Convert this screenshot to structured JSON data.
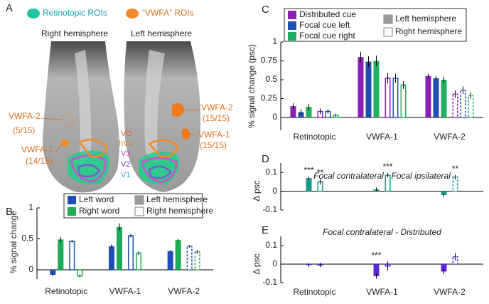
{
  "panel_a": {
    "letter": "A",
    "legend": [
      "Retinotopic ROIs",
      "“VWFA” ROIs"
    ],
    "hemispheres": [
      "Right hemisphere",
      "Left hemisphere"
    ],
    "rois_right": [
      {
        "name": "VWFA-2",
        "count": "(5/15)"
      },
      {
        "name": "VWFA-1",
        "count": "(14/15)"
      }
    ],
    "rois_left": [
      {
        "name": "VWFA-2",
        "count": "(15/15)"
      },
      {
        "name": "VWFA-1",
        "count": "(15/15)"
      }
    ],
    "areas": [
      "VO",
      "hV4",
      "V3",
      "V2",
      "V1"
    ]
  },
  "chart_data": [
    {
      "type": "bar",
      "panel": "B",
      "ylabel": "% signal change",
      "categories": [
        "Retinotopic",
        "VWFA-1",
        "VWFA-2"
      ],
      "ylim": [
        -0.15,
        1
      ],
      "yticks": [
        0,
        0.5,
        1
      ],
      "hemispheres": [
        "Left hemisphere",
        "Right hemisphere"
      ],
      "fill_styles": [
        "filled",
        "open"
      ],
      "open_dashed": [
        false,
        false,
        true
      ],
      "series": [
        {
          "name": "Left word",
          "color": "#1f4fb5",
          "values": [
            [
              -0.08,
              0.38,
              0.3
            ],
            [
              0.46,
              0.55,
              0.38
            ]
          ],
          "errors": [
            [
              0.02,
              0.03,
              0.02
            ],
            [
              0.02,
              0.03,
              0.02
            ]
          ]
        },
        {
          "name": "Right word",
          "color": "#1faa55",
          "values": [
            [
              0.49,
              0.69,
              0.48
            ],
            [
              -0.1,
              0.27,
              0.29
            ]
          ],
          "errors": [
            [
              0.04,
              0.06,
              0.02
            ],
            [
              0.02,
              0.03,
              0.03
            ]
          ]
        }
      ]
    },
    {
      "type": "bar",
      "panel": "C",
      "ylabel": "% signal change (psc)",
      "categories": [
        "Retinotopic",
        "VWFA-1",
        "VWFA-2"
      ],
      "ylim": [
        -0.17,
        1
      ],
      "yticks": [
        0,
        0.25,
        0.5,
        0.75,
        1
      ],
      "hemispheres": [
        "Left hemisphere",
        "Right hemisphere"
      ],
      "fill_styles": [
        "filled",
        "open"
      ],
      "open_dashed": [
        false,
        false,
        true
      ],
      "series": [
        {
          "name": "Distributed cue",
          "color": "#8b1fb5",
          "values": [
            [
              0.15,
              0.8,
              0.55
            ],
            [
              0.08,
              0.52,
              0.31
            ]
          ],
          "errors": [
            [
              0.04,
              0.07,
              0.03
            ],
            [
              0.04,
              0.07,
              0.05
            ]
          ]
        },
        {
          "name": "Focal cue left",
          "color": "#2050b0",
          "values": [
            [
              0.07,
              0.74,
              0.52
            ],
            [
              0.08,
              0.52,
              0.36
            ]
          ],
          "errors": [
            [
              0.04,
              0.07,
              0.03
            ],
            [
              0.03,
              0.06,
              0.05
            ]
          ]
        },
        {
          "name": "Focal cue right",
          "color": "#20b060",
          "values": [
            [
              0.14,
              0.75,
              0.5
            ],
            [
              0.03,
              0.43,
              0.29
            ]
          ],
          "errors": [
            [
              0.04,
              0.07,
              0.04
            ],
            [
              0.02,
              0.05,
              0.04
            ]
          ]
        }
      ]
    },
    {
      "type": "bar",
      "panel": "D",
      "title": "Focal contralateral - Focal ipsilateral",
      "ylabel": "Δ psc",
      "categories": [
        null,
        null,
        null
      ],
      "ylim": [
        -0.1,
        0.15
      ],
      "yticks": [
        -0.1,
        0,
        0.1
      ],
      "fill_styles": [
        "filled",
        "open"
      ],
      "open_dashed": [
        false,
        false,
        true
      ],
      "series": [
        {
          "color": "#1a9988",
          "values": [
            [
              0.07,
              0.01,
              -0.02
            ],
            [
              0.05,
              0.085,
              0.075
            ]
          ],
          "errors": [
            [
              0.008,
              0.01,
              0.01
            ],
            [
              0.015,
              0.012,
              0.012
            ]
          ],
          "annotations": [
            [
              "***",
              null,
              null
            ],
            [
              "**",
              "***",
              "**"
            ]
          ]
        }
      ]
    },
    {
      "type": "bar",
      "panel": "E",
      "title": "Focal contralateral - Distributed",
      "ylabel": "Δ psc",
      "categories": [
        "Retinotopic",
        "VWFA-1",
        "VWFA-2"
      ],
      "ylim": [
        -0.1,
        0.15
      ],
      "yticks": [
        -0.1,
        0,
        0.1
      ],
      "fill_styles": [
        "filled",
        "open"
      ],
      "open_dashed": [
        false,
        false,
        true
      ],
      "series": [
        {
          "color": "#5a28d8",
          "values": [
            [
              -0.005,
              -0.065,
              -0.04
            ],
            [
              -0.005,
              -0.01,
              0.04
            ]
          ],
          "errors": [
            [
              0.01,
              0.015,
              0.015
            ],
            [
              0.012,
              0.025,
              0.02
            ]
          ],
          "annotations": [
            [
              null,
              "***",
              null
            ],
            [
              null,
              null,
              null
            ]
          ]
        }
      ]
    }
  ]
}
